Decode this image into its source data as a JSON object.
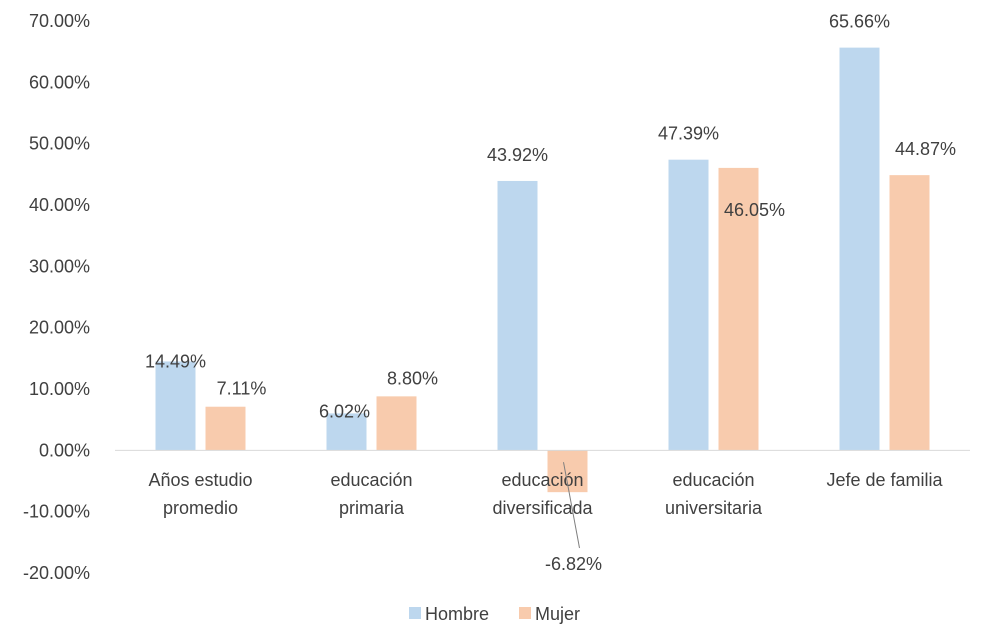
{
  "chart_data": {
    "type": "bar",
    "categories": [
      [
        "Años estudio",
        "promedio"
      ],
      [
        "educación",
        "primaria"
      ],
      [
        "educación",
        "diversificada"
      ],
      [
        "educación",
        "universitaria"
      ],
      [
        "Jefe de familia"
      ]
    ],
    "series": [
      {
        "name": "Hombre",
        "color": "#bdd7ee",
        "values": [
          0.1449,
          0.0602,
          0.4392,
          0.4739,
          0.6566
        ],
        "labels": [
          "14.49%",
          "6.02%",
          "43.92%",
          "47.39%",
          "65.66%"
        ]
      },
      {
        "name": "Mujer",
        "color": "#f8cbad",
        "values": [
          0.0711,
          0.088,
          -0.0682,
          0.4605,
          0.4487
        ],
        "labels": [
          "7.11%",
          "8.80%",
          "-6.82%",
          "46.05%",
          "44.87%"
        ]
      }
    ],
    "ylim": [
      -0.2,
      0.7
    ],
    "yticks": [
      0.7,
      0.6,
      0.5,
      0.4,
      0.3,
      0.2,
      0.1,
      0.0,
      -0.1,
      -0.2
    ],
    "ytick_labels": [
      "70.00%",
      "60.00%",
      "50.00%",
      "40.00%",
      "30.00%",
      "20.00%",
      "10.00%",
      "0.00%",
      "-10.00%",
      "-20.00%"
    ],
    "grid": false,
    "legend": "bottom-center"
  }
}
